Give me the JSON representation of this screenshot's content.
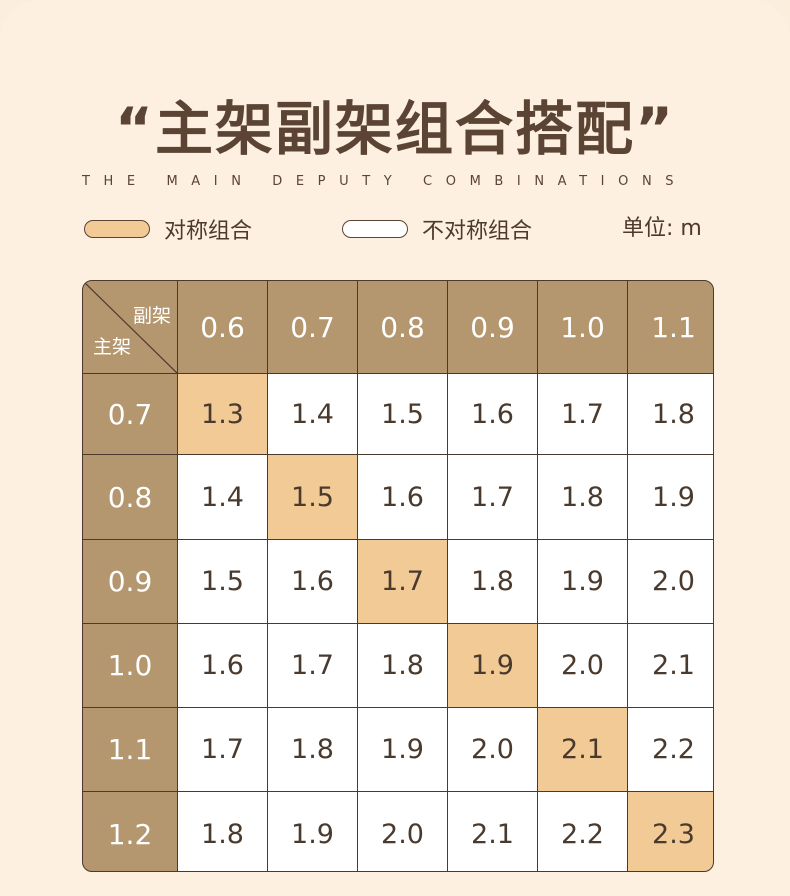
{
  "title": "“主架副架组合搭配”",
  "subtitle": "THE MAIN DEPUTY COMBINATIONS",
  "legend": {
    "symmetric_label": "对称组合",
    "asymmetric_label": "不对称组合",
    "unit": "单位: m",
    "symmetric_color": "#f2ca95",
    "asymmetric_color": "#ffffff"
  },
  "table": {
    "corner_top": "副架",
    "corner_bottom": "主架",
    "columns": [
      "0.6",
      "0.7",
      "0.8",
      "0.9",
      "1.0",
      "1.1"
    ],
    "rows": [
      {
        "header": "0.7",
        "values": [
          "1.3",
          "1.4",
          "1.5",
          "1.6",
          "1.7",
          "1.8"
        ],
        "sym": 0
      },
      {
        "header": "0.8",
        "values": [
          "1.4",
          "1.5",
          "1.6",
          "1.7",
          "1.8",
          "1.9"
        ],
        "sym": 1
      },
      {
        "header": "0.9",
        "values": [
          "1.5",
          "1.6",
          "1.7",
          "1.8",
          "1.9",
          "2.0"
        ],
        "sym": 2
      },
      {
        "header": "1.0",
        "values": [
          "1.6",
          "1.7",
          "1.8",
          "1.9",
          "2.0",
          "2.1"
        ],
        "sym": 3
      },
      {
        "header": "1.1",
        "values": [
          "1.7",
          "1.8",
          "1.9",
          "2.0",
          "2.1",
          "2.2"
        ],
        "sym": 4
      },
      {
        "header": "1.2",
        "values": [
          "1.8",
          "1.9",
          "2.0",
          "2.1",
          "2.2",
          "2.3"
        ],
        "sym": 5
      }
    ],
    "header_color": "#b4976f"
  }
}
